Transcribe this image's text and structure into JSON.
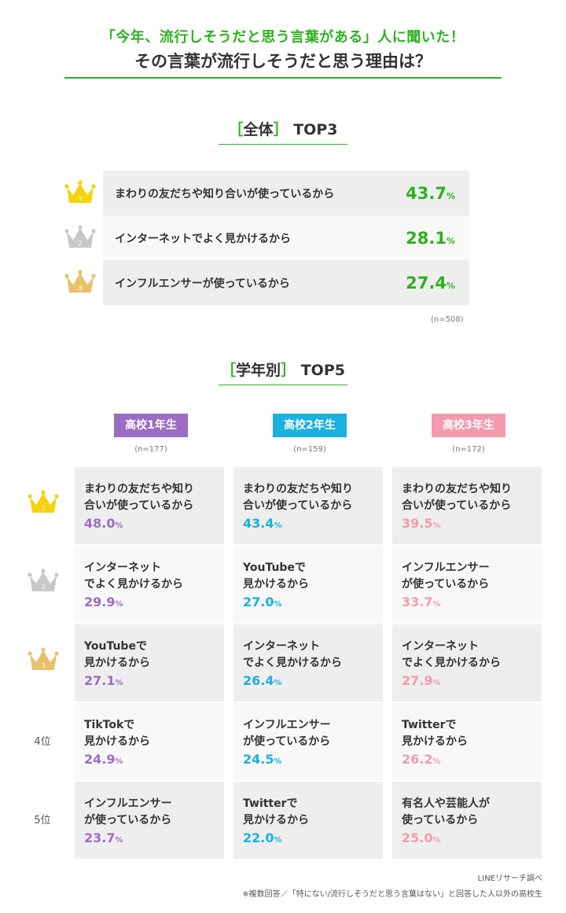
{
  "header": {
    "subtitle": "「今年、流行しそうだと思う言葉がある」人に聞いた！",
    "title": "その言葉が流行しそうだと思う理由は？"
  },
  "overall": {
    "heading_open": "［",
    "heading_word": "全体",
    "heading_close": "］",
    "heading_rank": "TOP3",
    "n": "(n=508)"
  },
  "grade": {
    "heading_open": "［",
    "heading_word": "学年別",
    "heading_close": "］",
    "heading_rank": "TOP5"
  },
  "rank_labels": [
    "1",
    "2",
    "3",
    "4位",
    "5位"
  ],
  "colors": {
    "green": "#2db11e",
    "grade1": "#9c6cc4",
    "grade2": "#1ab0e0",
    "grade3": "#f39aae",
    "gold": "#f5d20a",
    "silver": "#c8c8c8",
    "bronze": "#e8c26a"
  },
  "footer": {
    "source": "LINEリサーチ調べ",
    "note": "※複数回答／「特にない/流行しそうだと思う言葉はない」と回答した人以外の高校生"
  },
  "chart_data": [
    {
      "type": "table",
      "title": "全体 TOP3",
      "unit": "%",
      "n": "n=508",
      "rows": [
        {
          "rank": 1,
          "label": "まわりの友だちや知り合いが使っているから",
          "value": 43.7
        },
        {
          "rank": 2,
          "label": "インターネットでよく見かけるから",
          "value": 28.1
        },
        {
          "rank": 3,
          "label": "インフルエンサーが使っているから",
          "value": 27.4
        }
      ]
    },
    {
      "type": "table",
      "title": "学年別 TOP5",
      "unit": "%",
      "series": [
        {
          "name": "高校1年生",
          "n": "(n=177)",
          "rows": [
            {
              "label": "まわりの友だちや知り\n合いが使っているから",
              "value": 48.0
            },
            {
              "label": "インターネット\nでよく見かけるから",
              "value": 29.9
            },
            {
              "label": "YouTubeで\n見かけるから",
              "value": 27.1
            },
            {
              "label": "TikTokで\n見かけるから",
              "value": 24.9
            },
            {
              "label": "インフルエンサー\nが使っているから",
              "value": 23.7
            }
          ]
        },
        {
          "name": "高校2年生",
          "n": "(n=159)",
          "rows": [
            {
              "label": "まわりの友だちや知り\n合いが使っているから",
              "value": 43.4
            },
            {
              "label": "YouTubeで\n見かけるから",
              "value": 27.0
            },
            {
              "label": "インターネット\nでよく見かけるから",
              "value": 26.4
            },
            {
              "label": "インフルエンサー\nが使っているから",
              "value": 24.5
            },
            {
              "label": "Twitterで\n見かけるから",
              "value": 22.0
            }
          ]
        },
        {
          "name": "高校3年生",
          "n": "(n=172)",
          "rows": [
            {
              "label": "まわりの友だちや知り\n合いが使っているから",
              "value": 39.5
            },
            {
              "label": "インフルエンサー\nが使っているから",
              "value": 33.7
            },
            {
              "label": "インターネット\nでよく見かけるから",
              "value": 27.9
            },
            {
              "label": "Twitterで\n見かけるから",
              "value": 26.2
            },
            {
              "label": "有名人や芸能人が\n使っているから",
              "value": 25.0
            }
          ]
        }
      ]
    }
  ]
}
